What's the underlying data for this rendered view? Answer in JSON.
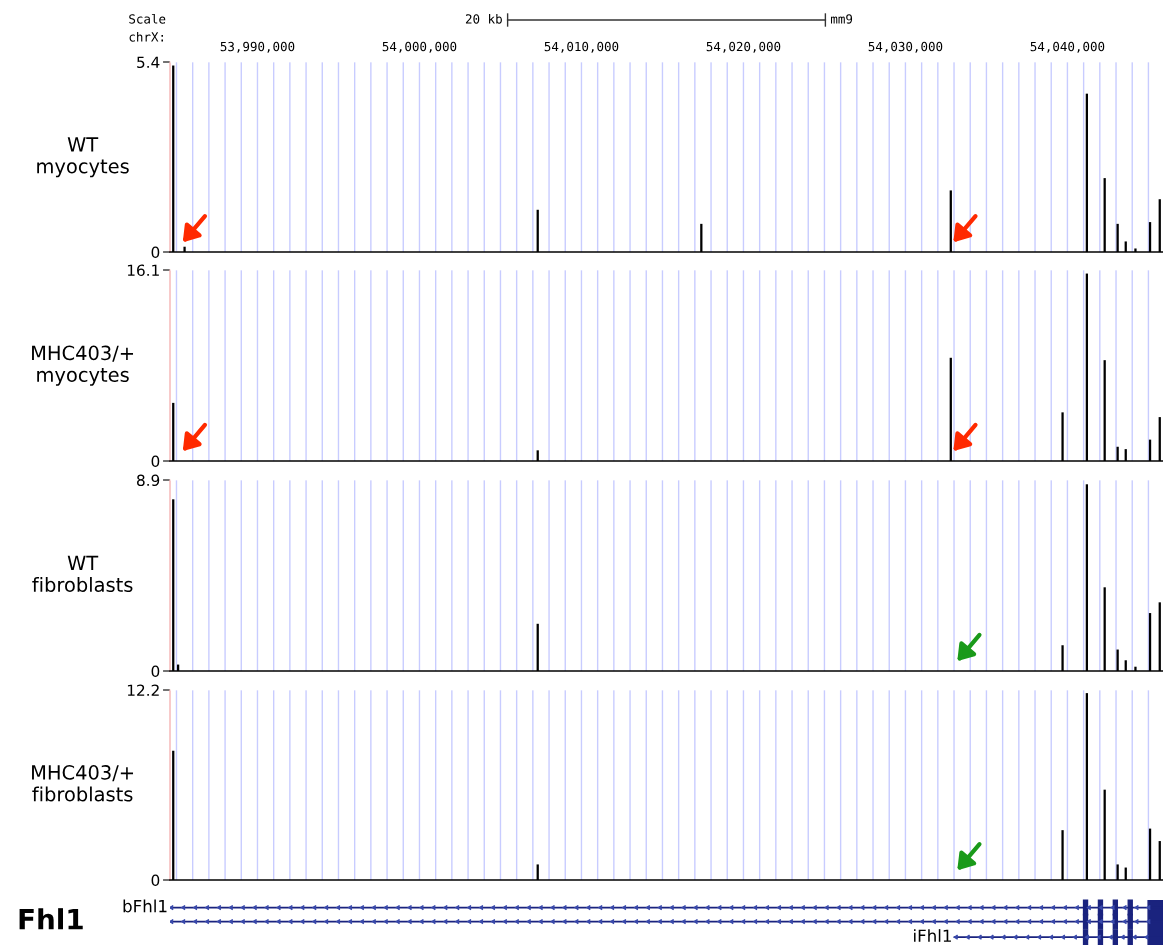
{
  "chart_data": [
    {
      "type": "bar",
      "ylabel": "WT\nmyocytes",
      "color": "#000000",
      "x": [
        53984800,
        53985500,
        54007300,
        54017400,
        54032800,
        54041200,
        54042300,
        54043100,
        54043600,
        54044200,
        54045100,
        54045700
      ],
      "values": [
        5.3,
        0.15,
        1.2,
        0.8,
        1.75,
        4.5,
        2.1,
        0.8,
        0.3,
        0.1,
        0.85,
        1.5
      ],
      "xlim": [
        53984600,
        54045900
      ],
      "ylim": [
        0,
        5.4
      ],
      "yticks": [
        0,
        5.4
      ],
      "xticks": [
        {
          "value": 53985000,
          "label": null
        },
        {
          "value": 53986000,
          "label": null
        },
        {
          "value": 53987000,
          "label": null
        },
        {
          "value": 53988000,
          "label": null
        },
        {
          "value": 53989000,
          "label": null
        },
        {
          "value": 53990000,
          "label": "53,990,000"
        },
        {
          "value": 53991000,
          "label": null
        },
        {
          "value": 53992000,
          "label": null
        },
        {
          "value": 53993000,
          "label": null
        },
        {
          "value": 53994000,
          "label": null
        },
        {
          "value": 53995000,
          "label": null
        },
        {
          "value": 53996000,
          "label": null
        },
        {
          "value": 53997000,
          "label": null
        },
        {
          "value": 53998000,
          "label": null
        },
        {
          "value": 53999000,
          "label": null
        },
        {
          "value": 54000000,
          "label": "54,000,000"
        },
        {
          "value": 54001000,
          "label": null
        },
        {
          "value": 54002000,
          "label": null
        },
        {
          "value": 54003000,
          "label": null
        },
        {
          "value": 54004000,
          "label": null
        },
        {
          "value": 54005000,
          "label": null
        },
        {
          "value": 54006000,
          "label": null
        },
        {
          "value": 54007000,
          "label": null
        },
        {
          "value": 54008000,
          "label": null
        },
        {
          "value": 54009000,
          "label": null
        },
        {
          "value": 54010000,
          "label": "54,010,000"
        },
        {
          "value": 54011000,
          "label": null
        },
        {
          "value": 54012000,
          "label": null
        },
        {
          "value": 54013000,
          "label": null
        },
        {
          "value": 54014000,
          "label": null
        },
        {
          "value": 54015000,
          "label": null
        },
        {
          "value": 54016000,
          "label": null
        },
        {
          "value": 54017000,
          "label": null
        },
        {
          "value": 54018000,
          "label": null
        },
        {
          "value": 54019000,
          "label": null
        },
        {
          "value": 54020000,
          "label": "54,020,000"
        },
        {
          "value": 54021000,
          "label": null
        },
        {
          "value": 54022000,
          "label": null
        },
        {
          "value": 54023000,
          "label": null
        },
        {
          "value": 54024000,
          "label": null
        },
        {
          "value": 54025000,
          "label": null
        },
        {
          "value": 54026000,
          "label": null
        },
        {
          "value": 54027000,
          "label": null
        },
        {
          "value": 54028000,
          "label": null
        },
        {
          "value": 54029000,
          "label": null
        },
        {
          "value": 54030000,
          "label": "54,030,000"
        },
        {
          "value": 54031000,
          "label": null
        },
        {
          "value": 54032000,
          "label": null
        },
        {
          "value": 54033000,
          "label": null
        },
        {
          "value": 54034000,
          "label": null
        },
        {
          "value": 54035000,
          "label": null
        },
        {
          "value": 54036000,
          "label": null
        },
        {
          "value": 54037000,
          "label": null
        },
        {
          "value": 54038000,
          "label": null
        },
        {
          "value": 54039000,
          "label": null
        },
        {
          "value": 54040000,
          "label": "54,040,000"
        },
        {
          "value": 54041000,
          "label": null
        },
        {
          "value": 54042000,
          "label": null
        },
        {
          "value": 54043000,
          "label": null
        },
        {
          "value": 54044000,
          "label": null
        },
        {
          "value": 54045000,
          "label": null
        }
      ],
      "grid": "x",
      "annotations": [
        "Scale",
        "chrX:",
        "20 kb",
        "mm9"
      ]
    },
    {
      "type": "bar",
      "ylabel": "MHC403/+\nmyocytes",
      "color": "#000000",
      "x": [
        53984800,
        54007300,
        54032800,
        54039700,
        54041200,
        54042300,
        54043100,
        54043600,
        54045100,
        54045700
      ],
      "values": [
        4.9,
        0.9,
        8.7,
        4.1,
        15.8,
        8.5,
        1.2,
        1.0,
        1.8,
        3.7
      ],
      "xlim": [
        53984600,
        54045900
      ],
      "ylim": [
        0,
        16.1
      ],
      "yticks": [
        0,
        16.1
      ],
      "xticks": [
        {
          "value": 53985000,
          "label": null
        },
        {
          "value": 53986000,
          "label": null
        },
        {
          "value": 53987000,
          "label": null
        },
        {
          "value": 53988000,
          "label": null
        },
        {
          "value": 53989000,
          "label": null
        },
        {
          "value": 53990000,
          "label": null
        },
        {
          "value": 53991000,
          "label": null
        },
        {
          "value": 53992000,
          "label": null
        },
        {
          "value": 53993000,
          "label": null
        },
        {
          "value": 53994000,
          "label": null
        },
        {
          "value": 53995000,
          "label": null
        },
        {
          "value": 53996000,
          "label": null
        },
        {
          "value": 53997000,
          "label": null
        },
        {
          "value": 53998000,
          "label": null
        },
        {
          "value": 53999000,
          "label": null
        },
        {
          "value": 54000000,
          "label": null
        },
        {
          "value": 54001000,
          "label": null
        },
        {
          "value": 54002000,
          "label": null
        },
        {
          "value": 54003000,
          "label": null
        },
        {
          "value": 54004000,
          "label": null
        },
        {
          "value": 54005000,
          "label": null
        },
        {
          "value": 54006000,
          "label": null
        },
        {
          "value": 54007000,
          "label": null
        },
        {
          "value": 54008000,
          "label": null
        },
        {
          "value": 54009000,
          "label": null
        },
        {
          "value": 54010000,
          "label": null
        },
        {
          "value": 54011000,
          "label": null
        },
        {
          "value": 54012000,
          "label": null
        },
        {
          "value": 54013000,
          "label": null
        },
        {
          "value": 54014000,
          "label": null
        },
        {
          "value": 54015000,
          "label": null
        },
        {
          "value": 54016000,
          "label": null
        },
        {
          "value": 54017000,
          "label": null
        },
        {
          "value": 54018000,
          "label": null
        },
        {
          "value": 54019000,
          "label": null
        },
        {
          "value": 54020000,
          "label": null
        },
        {
          "value": 54021000,
          "label": null
        },
        {
          "value": 54022000,
          "label": null
        },
        {
          "value": 54023000,
          "label": null
        },
        {
          "value": 54024000,
          "label": null
        },
        {
          "value": 54025000,
          "label": null
        },
        {
          "value": 54026000,
          "label": null
        },
        {
          "value": 54027000,
          "label": null
        },
        {
          "value": 54028000,
          "label": null
        },
        {
          "value": 54029000,
          "label": null
        },
        {
          "value": 54030000,
          "label": null
        },
        {
          "value": 54031000,
          "label": null
        },
        {
          "value": 54032000,
          "label": null
        },
        {
          "value": 54033000,
          "label": null
        },
        {
          "value": 54034000,
          "label": null
        },
        {
          "value": 54035000,
          "label": null
        },
        {
          "value": 54036000,
          "label": null
        },
        {
          "value": 54037000,
          "label": null
        },
        {
          "value": 54038000,
          "label": null
        },
        {
          "value": 54039000,
          "label": null
        },
        {
          "value": 54040000,
          "label": null
        },
        {
          "value": 54041000,
          "label": null
        },
        {
          "value": 54042000,
          "label": null
        },
        {
          "value": 54043000,
          "label": null
        },
        {
          "value": 54044000,
          "label": null
        },
        {
          "value": 54045000,
          "label": null
        }
      ],
      "grid": "x",
      "tick_labels": "y"
    },
    {
      "type": "bar",
      "ylabel": "WT\nfibroblasts",
      "color": "#000000",
      "x": [
        53984800,
        53985100,
        54007300,
        54039700,
        54041200,
        54042300,
        54043100,
        54043600,
        54044200,
        54045100,
        54045700
      ],
      "values": [
        8.0,
        0.3,
        2.2,
        1.2,
        8.7,
        3.9,
        1.0,
        0.5,
        0.2,
        2.7,
        3.2
      ],
      "xlim": [
        53984600,
        54045900
      ],
      "ylim": [
        0,
        8.9
      ],
      "yticks": [
        0,
        8.9
      ],
      "xticks": [
        {
          "value": 53985000,
          "label": null
        },
        {
          "value": 53986000,
          "label": null
        },
        {
          "value": 53987000,
          "label": null
        },
        {
          "value": 53988000,
          "label": null
        },
        {
          "value": 53989000,
          "label": null
        },
        {
          "value": 53990000,
          "label": null
        },
        {
          "value": 53991000,
          "label": null
        },
        {
          "value": 53992000,
          "label": null
        },
        {
          "value": 53993000,
          "label": null
        },
        {
          "value": 53994000,
          "label": null
        },
        {
          "value": 53995000,
          "label": null
        },
        {
          "value": 53996000,
          "label": null
        },
        {
          "value": 53997000,
          "label": null
        },
        {
          "value": 53998000,
          "label": null
        },
        {
          "value": 53999000,
          "label": null
        },
        {
          "value": 54000000,
          "label": null
        },
        {
          "value": 54001000,
          "label": null
        },
        {
          "value": 54002000,
          "label": null
        },
        {
          "value": 54003000,
          "label": null
        },
        {
          "value": 54004000,
          "label": null
        },
        {
          "value": 54005000,
          "label": null
        },
        {
          "value": 54006000,
          "label": null
        },
        {
          "value": 54007000,
          "label": null
        },
        {
          "value": 54008000,
          "label": null
        },
        {
          "value": 54009000,
          "label": null
        },
        {
          "value": 54010000,
          "label": null
        },
        {
          "value": 54011000,
          "label": null
        },
        {
          "value": 54012000,
          "label": null
        },
        {
          "value": 54013000,
          "label": null
        },
        {
          "value": 54014000,
          "label": null
        },
        {
          "value": 54015000,
          "label": null
        },
        {
          "value": 54016000,
          "label": null
        },
        {
          "value": 54017000,
          "label": null
        },
        {
          "value": 54018000,
          "label": null
        },
        {
          "value": 54019000,
          "label": null
        },
        {
          "value": 54020000,
          "label": null
        },
        {
          "value": 54021000,
          "label": null
        },
        {
          "value": 54022000,
          "label": null
        },
        {
          "value": 54023000,
          "label": null
        },
        {
          "value": 54024000,
          "label": null
        },
        {
          "value": 54025000,
          "label": null
        },
        {
          "value": 54026000,
          "label": null
        },
        {
          "value": 54027000,
          "label": null
        },
        {
          "value": 54028000,
          "label": null
        },
        {
          "value": 54029000,
          "label": null
        },
        {
          "value": 54030000,
          "label": null
        },
        {
          "value": 54031000,
          "label": null
        },
        {
          "value": 54032000,
          "label": null
        },
        {
          "value": 54033000,
          "label": null
        },
        {
          "value": 54034000,
          "label": null
        },
        {
          "value": 54035000,
          "label": null
        },
        {
          "value": 54036000,
          "label": null
        },
        {
          "value": 54037000,
          "label": null
        },
        {
          "value": 54038000,
          "label": null
        },
        {
          "value": 54039000,
          "label": null
        },
        {
          "value": 54040000,
          "label": null
        },
        {
          "value": 54041000,
          "label": null
        },
        {
          "value": 54042000,
          "label": null
        },
        {
          "value": 54043000,
          "label": null
        },
        {
          "value": 54044000,
          "label": null
        },
        {
          "value": 54045000,
          "label": null
        }
      ],
      "grid": "x",
      "tick_labels": "y"
    },
    {
      "type": "bar",
      "ylabel": "MHC403/+\nfibroblasts",
      "color": "#000000",
      "x": [
        53984800,
        54007300,
        54039700,
        54041200,
        54042300,
        54043100,
        54043600,
        54045100,
        54045700
      ],
      "values": [
        8.3,
        1.0,
        3.2,
        12.0,
        5.8,
        1.0,
        0.8,
        3.3,
        2.5
      ],
      "xlim": [
        53984600,
        54045900
      ],
      "ylim": [
        0,
        12.2
      ],
      "yticks": [
        0,
        12.2
      ],
      "xticks": [
        {
          "value": 53985000,
          "label": null
        },
        {
          "value": 53986000,
          "label": null
        },
        {
          "value": 53987000,
          "label": null
        },
        {
          "value": 53988000,
          "label": null
        },
        {
          "value": 53989000,
          "label": null
        },
        {
          "value": 53990000,
          "label": null
        },
        {
          "value": 53991000,
          "label": null
        },
        {
          "value": 53992000,
          "label": null
        },
        {
          "value": 53993000,
          "label": null
        },
        {
          "value": 53994000,
          "label": null
        },
        {
          "value": 53995000,
          "label": null
        },
        {
          "value": 53996000,
          "label": null
        },
        {
          "value": 53997000,
          "label": null
        },
        {
          "value": 53998000,
          "label": null
        },
        {
          "value": 53999000,
          "label": null
        },
        {
          "value": 54000000,
          "label": null
        },
        {
          "value": 54001000,
          "label": null
        },
        {
          "value": 54002000,
          "label": null
        },
        {
          "value": 54003000,
          "label": null
        },
        {
          "value": 54004000,
          "label": null
        },
        {
          "value": 54005000,
          "label": null
        },
        {
          "value": 54006000,
          "label": null
        },
        {
          "value": 54007000,
          "label": null
        },
        {
          "value": 54008000,
          "label": null
        },
        {
          "value": 54009000,
          "label": null
        },
        {
          "value": 54010000,
          "label": null
        },
        {
          "value": 54011000,
          "label": null
        },
        {
          "value": 54012000,
          "label": null
        },
        {
          "value": 54013000,
          "label": null
        },
        {
          "value": 54014000,
          "label": null
        },
        {
          "value": 54015000,
          "label": null
        },
        {
          "value": 54016000,
          "label": null
        },
        {
          "value": 54017000,
          "label": null
        },
        {
          "value": 54018000,
          "label": null
        },
        {
          "value": 54019000,
          "label": null
        },
        {
          "value": 54020000,
          "label": null
        },
        {
          "value": 54021000,
          "label": null
        },
        {
          "value": 54022000,
          "label": null
        },
        {
          "value": 54023000,
          "label": null
        },
        {
          "value": 54024000,
          "label": null
        },
        {
          "value": 54025000,
          "label": null
        },
        {
          "value": 54026000,
          "label": null
        },
        {
          "value": 54027000,
          "label": null
        },
        {
          "value": 54028000,
          "label": null
        },
        {
          "value": 54029000,
          "label": null
        },
        {
          "value": 54030000,
          "label": null
        },
        {
          "value": 54031000,
          "label": null
        },
        {
          "value": 54032000,
          "label": null
        },
        {
          "value": 54033000,
          "label": null
        },
        {
          "value": 54034000,
          "label": null
        },
        {
          "value": 54035000,
          "label": null
        },
        {
          "value": 54036000,
          "label": null
        },
        {
          "value": 54037000,
          "label": null
        },
        {
          "value": 54038000,
          "label": null
        },
        {
          "value": 54039000,
          "label": null
        },
        {
          "value": 54040000,
          "label": null
        },
        {
          "value": 54041000,
          "label": null
        },
        {
          "value": 54042000,
          "label": null
        },
        {
          "value": 54043000,
          "label": null
        },
        {
          "value": 54044000,
          "label": null
        },
        {
          "value": 54045000,
          "label": null
        }
      ],
      "grid": "x",
      "tick_labels": "y"
    },
    {
      "type": "other",
      "annotations": [
        "Fhl1",
        "bFhl1",
        "iFhl1"
      ]
    }
  ]
}
